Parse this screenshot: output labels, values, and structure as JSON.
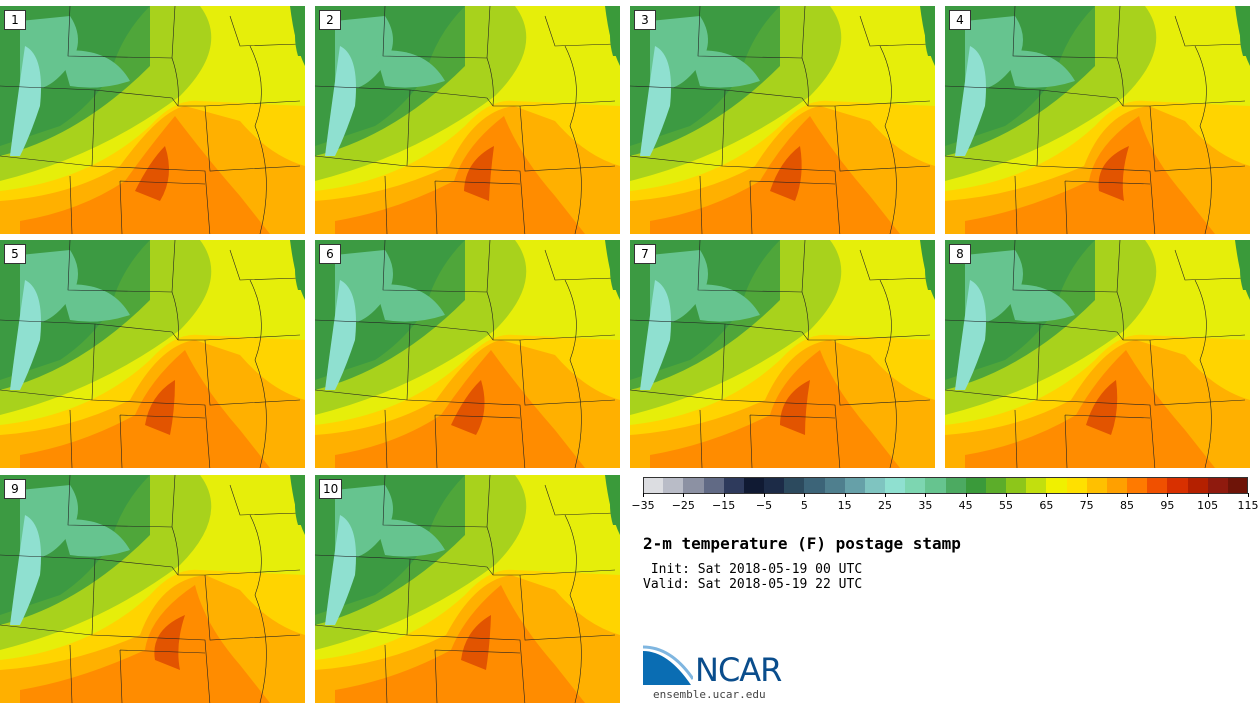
{
  "panels": [
    {
      "label": "1"
    },
    {
      "label": "2"
    },
    {
      "label": "3"
    },
    {
      "label": "4"
    },
    {
      "label": "5"
    },
    {
      "label": "6"
    },
    {
      "label": "7"
    },
    {
      "label": "8"
    },
    {
      "label": "9"
    },
    {
      "label": "10"
    }
  ],
  "colorbar": {
    "colors": [
      "#dcdde1",
      "#b9bcc7",
      "#8c91a3",
      "#616a85",
      "#2e3a5c",
      "#101a33",
      "#1c2b47",
      "#2c4a5e",
      "#3c6478",
      "#4f7f8e",
      "#66a0a8",
      "#7fc4c0",
      "#8fe0d0",
      "#7dd6b1",
      "#66c48f",
      "#4caa61",
      "#3a9a3a",
      "#5cad2a",
      "#8dc61a",
      "#c2df0e",
      "#f0f000",
      "#ffe000",
      "#ffc000",
      "#ffa000",
      "#ff7a00",
      "#f05000",
      "#d83000",
      "#b42000",
      "#8f1a0e",
      "#6e1408"
    ],
    "tick_labels": [
      "−35",
      "−25",
      "−15",
      "−5",
      "5",
      "15",
      "25",
      "35",
      "45",
      "55",
      "65",
      "75",
      "85",
      "95",
      "105",
      "115"
    ]
  },
  "title": "2-m temperature (F) postage stamp",
  "init_line": " Init: Sat 2018-05-19 00 UTC",
  "valid_line": "Valid: Sat 2018-05-19 22 UTC",
  "logo": {
    "text": "NCAR",
    "url": "ensemble.ucar.edu"
  }
}
